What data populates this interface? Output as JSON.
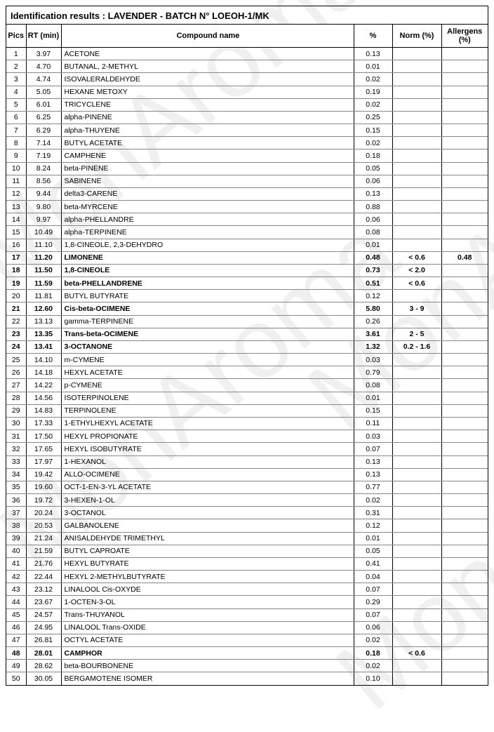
{
  "title": "Identification results : LAVENDER - BATCH N° LOEOH-1/MK",
  "columns": {
    "pics": "Pics",
    "rt": "RT (min)",
    "name": "Compound name",
    "pct": "%",
    "norm": "Norm (%)",
    "allergens": "Allergens (%)"
  },
  "rows": [
    {
      "pics": "1",
      "rt": "3.97",
      "name": "ACETONE",
      "pct": "0.13",
      "norm": "",
      "all": "",
      "bold": false
    },
    {
      "pics": "2",
      "rt": "4.70",
      "name": "BUTANAL, 2-METHYL",
      "pct": "0.01",
      "norm": "",
      "all": "",
      "bold": false
    },
    {
      "pics": "3",
      "rt": "4.74",
      "name": "ISOVALERALDEHYDE",
      "pct": "0.02",
      "norm": "",
      "all": "",
      "bold": false
    },
    {
      "pics": "4",
      "rt": "5.05",
      "name": "HEXANE METOXY",
      "pct": "0.19",
      "norm": "",
      "all": "",
      "bold": false
    },
    {
      "pics": "5",
      "rt": "6.01",
      "name": "TRICYCLENE",
      "pct": "0.02",
      "norm": "",
      "all": "",
      "bold": false
    },
    {
      "pics": "6",
      "rt": "6.25",
      "name": "alpha-PINENE",
      "pct": "0.25",
      "norm": "",
      "all": "",
      "bold": false
    },
    {
      "pics": "7",
      "rt": "6.29",
      "name": "alpha-THUYENE",
      "pct": "0.15",
      "norm": "",
      "all": "",
      "bold": false
    },
    {
      "pics": "8",
      "rt": "7.14",
      "name": "BUTYL ACETATE",
      "pct": "0.02",
      "norm": "",
      "all": "",
      "bold": false
    },
    {
      "pics": "9",
      "rt": "7.19",
      "name": "CAMPHENE",
      "pct": "0.18",
      "norm": "",
      "all": "",
      "bold": false
    },
    {
      "pics": "10",
      "rt": "8.24",
      "name": "beta-PINENE",
      "pct": "0.05",
      "norm": "",
      "all": "",
      "bold": false
    },
    {
      "pics": "11",
      "rt": "8.56",
      "name": "SABINENE",
      "pct": "0.06",
      "norm": "",
      "all": "",
      "bold": false
    },
    {
      "pics": "12",
      "rt": "9.44",
      "name": "delta3-CARENE",
      "pct": "0.13",
      "norm": "",
      "all": "",
      "bold": false
    },
    {
      "pics": "13",
      "rt": "9.80",
      "name": "beta-MYRCENE",
      "pct": "0.88",
      "norm": "",
      "all": "",
      "bold": false
    },
    {
      "pics": "14",
      "rt": "9.97",
      "name": "alpha-PHELLANDRE",
      "pct": "0.06",
      "norm": "",
      "all": "",
      "bold": false
    },
    {
      "pics": "15",
      "rt": "10.49",
      "name": "alpha-TERPINENE",
      "pct": "0.08",
      "norm": "",
      "all": "",
      "bold": false
    },
    {
      "pics": "16",
      "rt": "11.10",
      "name": "1,8-CINEOLE, 2,3-DEHYDRO",
      "pct": "0.01",
      "norm": "",
      "all": "",
      "bold": false
    },
    {
      "pics": "17",
      "rt": "11.20",
      "name": "LIMONENE",
      "pct": "0.48",
      "norm": "< 0.6",
      "all": "0.48",
      "bold": true
    },
    {
      "pics": "18",
      "rt": "11.50",
      "name": "1,8-CINEOLE",
      "pct": "0.73",
      "norm": "< 2.0",
      "all": "",
      "bold": true
    },
    {
      "pics": "19",
      "rt": "11.59",
      "name": "beta-PHELLANDRENE",
      "pct": "0.51",
      "norm": "< 0.6",
      "all": "",
      "bold": true
    },
    {
      "pics": "20",
      "rt": "11.81",
      "name": "BUTYL BUTYRATE",
      "pct": "0.12",
      "norm": "",
      "all": "",
      "bold": false
    },
    {
      "pics": "21",
      "rt": "12.60",
      "name": "Cis-beta-OCIMENE",
      "pct": "5.80",
      "norm": "3 - 9",
      "all": "",
      "bold": true
    },
    {
      "pics": "22",
      "rt": "13.13",
      "name": "gamma-TERPINENE",
      "pct": "0.26",
      "norm": "",
      "all": "",
      "bold": false
    },
    {
      "pics": "23",
      "rt": "13.35",
      "name": "Trans-beta-OCIMENE",
      "pct": "3.61",
      "norm": "2 - 5",
      "all": "",
      "bold": true
    },
    {
      "pics": "24",
      "rt": "13.41",
      "name": "3-OCTANONE",
      "pct": "1.32",
      "norm": "0.2 - 1.6",
      "all": "",
      "bold": true
    },
    {
      "pics": "25",
      "rt": "14.10",
      "name": "m-CYMENE",
      "pct": "0.03",
      "norm": "",
      "all": "",
      "bold": false
    },
    {
      "pics": "26",
      "rt": "14.18",
      "name": "HEXYL ACETATE",
      "pct": "0.79",
      "norm": "",
      "all": "",
      "bold": false
    },
    {
      "pics": "27",
      "rt": "14.22",
      "name": "p-CYMENE",
      "pct": "0.08",
      "norm": "",
      "all": "",
      "bold": false
    },
    {
      "pics": "28",
      "rt": "14.56",
      "name": "ISOTERPINOLENE",
      "pct": "0.01",
      "norm": "",
      "all": "",
      "bold": false
    },
    {
      "pics": "29",
      "rt": "14.83",
      "name": "TERPINOLENE",
      "pct": "0.15",
      "norm": "",
      "all": "",
      "bold": false
    },
    {
      "pics": "30",
      "rt": "17.33",
      "name": "1-ETHYLHEXYL ACETATE",
      "pct": "0.11",
      "norm": "",
      "all": "",
      "bold": false
    },
    {
      "pics": "31",
      "rt": "17.50",
      "name": "HEXYL PROPIONATE",
      "pct": "0.03",
      "norm": "",
      "all": "",
      "bold": false
    },
    {
      "pics": "32",
      "rt": "17.65",
      "name": "HEXYL ISOBUTYRATE",
      "pct": "0.07",
      "norm": "",
      "all": "",
      "bold": false
    },
    {
      "pics": "33",
      "rt": "17.97",
      "name": "1-HEXANOL",
      "pct": "0.13",
      "norm": "",
      "all": "",
      "bold": false
    },
    {
      "pics": "34",
      "rt": "19.42",
      "name": "ALLO-OCIMENE",
      "pct": "0.13",
      "norm": "",
      "all": "",
      "bold": false
    },
    {
      "pics": "35",
      "rt": "19.60",
      "name": "OCT-1-EN-3-YL ACETATE",
      "pct": "0.77",
      "norm": "",
      "all": "",
      "bold": false
    },
    {
      "pics": "36",
      "rt": "19.72",
      "name": "3-HEXEN-1-OL",
      "pct": "0.02",
      "norm": "",
      "all": "",
      "bold": false
    },
    {
      "pics": "37",
      "rt": "20.24",
      "name": "3-OCTANOL",
      "pct": "0.31",
      "norm": "",
      "all": "",
      "bold": false
    },
    {
      "pics": "38",
      "rt": "20.53",
      "name": "GALBANOLENE",
      "pct": "0.12",
      "norm": "",
      "all": "",
      "bold": false
    },
    {
      "pics": "39",
      "rt": "21.24",
      "name": "ANISALDEHYDE TRIMETHYL",
      "pct": "0.01",
      "norm": "",
      "all": "",
      "bold": false
    },
    {
      "pics": "40",
      "rt": "21.59",
      "name": "BUTYL CAPROATE",
      "pct": "0.05",
      "norm": "",
      "all": "",
      "bold": false
    },
    {
      "pics": "41",
      "rt": "21.76",
      "name": "HEXYL BUTYRATE",
      "pct": "0.41",
      "norm": "",
      "all": "",
      "bold": false
    },
    {
      "pics": "42",
      "rt": "22.44",
      "name": "HEXYL 2-METHYLBUTYRATE",
      "pct": "0.04",
      "norm": "",
      "all": "",
      "bold": false
    },
    {
      "pics": "43",
      "rt": "23.12",
      "name": "LINALOOL Cis-OXYDE",
      "pct": "0.07",
      "norm": "",
      "all": "",
      "bold": false
    },
    {
      "pics": "44",
      "rt": "23.67",
      "name": "1-OCTEN-3-OL",
      "pct": "0.29",
      "norm": "",
      "all": "",
      "bold": false
    },
    {
      "pics": "45",
      "rt": "24.57",
      "name": "Trans-THUYANOL",
      "pct": "0.07",
      "norm": "",
      "all": "",
      "bold": false
    },
    {
      "pics": "46",
      "rt": "24.95",
      "name": "LINALOOL Trans-OXIDE",
      "pct": "0.06",
      "norm": "",
      "all": "",
      "bold": false
    },
    {
      "pics": "47",
      "rt": "26.81",
      "name": "OCTYL ACETATE",
      "pct": "0.02",
      "norm": "",
      "all": "",
      "bold": false
    },
    {
      "pics": "48",
      "rt": "28.01",
      "name": "CAMPHOR",
      "pct": "0.18",
      "norm": "< 0.6",
      "all": "",
      "bold": true
    },
    {
      "pics": "49",
      "rt": "28.62",
      "name": "beta-BOURBONENE",
      "pct": "0.02",
      "norm": "",
      "all": "",
      "bold": false
    },
    {
      "pics": "50",
      "rt": "30.05",
      "name": "BERGAMOTENE ISOMER",
      "pct": "0.10",
      "norm": "",
      "all": "",
      "bold": false
    }
  ]
}
